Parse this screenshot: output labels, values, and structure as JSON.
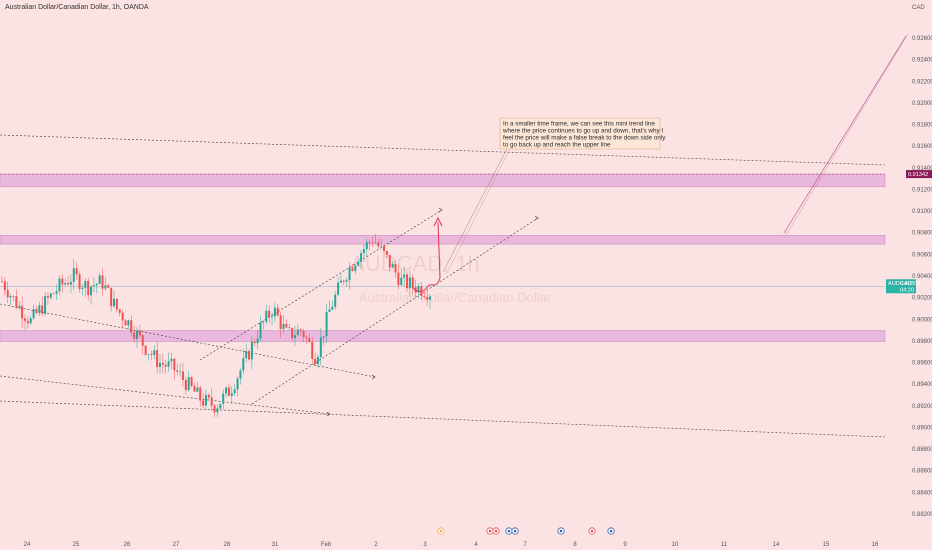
{
  "chart_data": {
    "type": "candlestick",
    "title": "Australian Dollar/Canadian Dollar, 1h, OANDA",
    "currency": "CAD",
    "ylim": [
      0.88,
      0.927
    ],
    "y_ticks": [
      0.882,
      0.884,
      0.886,
      0.888,
      0.89,
      0.892,
      0.894,
      0.896,
      0.898,
      0.9,
      0.902,
      0.904,
      0.906,
      0.908,
      0.91,
      0.912,
      0.914,
      0.916,
      0.918,
      0.92,
      0.922,
      0.924,
      0.926
    ],
    "x_labels": [
      "24",
      "25",
      "26",
      "27",
      "28",
      "31",
      "Feb",
      "2",
      "3",
      "4",
      "7",
      "8",
      "9",
      "10",
      "11",
      "14",
      "15",
      "16"
    ],
    "x_label_positions_px": [],
    "price_tag": {
      "label": "AUDCAD",
      "value": "0.90305",
      "countdown": "04:20",
      "price": 0.90305
    },
    "level_tag": {
      "value": "0.91342",
      "price": 0.91342
    },
    "zones": [
      {
        "name": "upper-resistance-zone",
        "from": 0.91225,
        "to": 0.91342
      },
      {
        "name": "middle-resistance-zone",
        "from": 0.90695,
        "to": 0.90775
      },
      {
        "name": "support-zone",
        "from": 0.89795,
        "to": 0.89895
      }
    ],
    "annotation_text": "In a smaller time frame, we can see this mini trend line where the price continues to go up and down, that's why I feel the price will make a false break to the down side only to go back up and reach the upper line",
    "annotation_lines": [
      "In a smaller time frame, we can see this mini trend line",
      "where the price continues to go up and down, that's why I",
      "feel the price will make a false break to the down side only",
      "to go back up and reach the upper line"
    ],
    "watermark": {
      "symbol": "AUDCAD, 1h",
      "name": "Australian Dollar/Canadian Dollar"
    },
    "candles_approx": "hourly OHLC reconstructed from chart shape",
    "key_path": [
      0.9035,
      0.9015,
      0.8998,
      0.9015,
      0.903,
      0.904,
      0.903,
      0.9035,
      0.901,
      0.8995,
      0.8975,
      0.896,
      0.8955,
      0.894,
      0.8925,
      0.892,
      0.8935,
      0.896,
      0.899,
      0.901,
      0.8985,
      0.899,
      0.8965,
      0.901,
      0.904,
      0.906,
      0.9075,
      0.9055,
      0.9035,
      0.903,
      0.9025
    ]
  },
  "icons": [
    "event-icon",
    "earnings-icon",
    "flag-icon"
  ]
}
